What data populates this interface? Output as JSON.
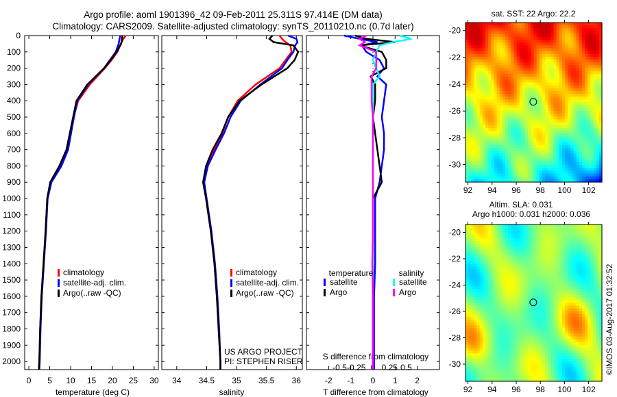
{
  "chart_data": [
    {
      "type": "line",
      "id": "temperature",
      "title": "Argo profile: aoml 1901396_42 09-Feb-2011 25.311S 97.414E (DM data)",
      "subtitle": "Climatology: CARS2009. Satellite-adjusted climatology: synTS_20110210.nc (0.7d later)",
      "xlabel": "temperature (deg C)",
      "xlim": [
        -1,
        31
      ],
      "xticks": [
        0,
        5,
        10,
        15,
        20,
        25,
        30
      ],
      "ylim": [
        2050,
        0
      ],
      "yticks": [
        0,
        100,
        200,
        300,
        400,
        500,
        600,
        700,
        800,
        900,
        1000,
        1100,
        1200,
        1300,
        1400,
        1500,
        1600,
        1700,
        1800,
        1900,
        2000
      ],
      "depth": [
        0,
        20,
        50,
        100,
        150,
        200,
        300,
        400,
        500,
        600,
        700,
        800,
        900,
        1000,
        1200,
        1400,
        1600,
        1800,
        2000,
        2050
      ],
      "series": [
        {
          "name": "climatology",
          "color": "#ff0000",
          "values": [
            23.2,
            22.6,
            22.0,
            21.2,
            19.8,
            18.2,
            14.6,
            11.8,
            10.7,
            9.9,
            9.1,
            7.4,
            5.2,
            4.4,
            4.0,
            3.5,
            3.0,
            2.7,
            2.5,
            2.4
          ]
        },
        {
          "name": "satellite-adj. clim.",
          "color": "#0000ff",
          "values": [
            21.9,
            21.7,
            21.5,
            20.8,
            19.4,
            18.0,
            14.2,
            11.6,
            10.8,
            10.1,
            9.4,
            7.8,
            5.4,
            4.5,
            4.1,
            3.6,
            3.1,
            2.8,
            2.6,
            2.5
          ]
        },
        {
          "name": "Argo(..raw -QC)",
          "color": "#000000",
          "values": [
            22.4,
            22.3,
            22.1,
            21.0,
            19.6,
            18.0,
            14.0,
            11.4,
            10.6,
            9.8,
            9.0,
            7.3,
            5.1,
            4.4,
            4.0,
            3.5,
            3.0,
            2.7,
            2.5,
            2.4
          ]
        }
      ]
    },
    {
      "type": "line",
      "id": "salinity",
      "xlabel": "salinity",
      "xlim": [
        33.75,
        36.1
      ],
      "xticks": [
        34,
        34.5,
        35,
        35.5,
        36
      ],
      "ylim": [
        2050,
        0
      ],
      "depth": [
        0,
        20,
        40,
        60,
        100,
        150,
        200,
        300,
        400,
        500,
        600,
        700,
        800,
        900,
        1000,
        1200,
        1400,
        1600,
        1800,
        2000,
        2050
      ],
      "series": [
        {
          "name": "climatology",
          "color": "#ff0000",
          "values": [
            35.72,
            35.76,
            35.82,
            35.9,
            35.92,
            35.82,
            35.72,
            35.32,
            35.02,
            34.86,
            34.76,
            34.62,
            34.5,
            34.45,
            34.49,
            34.57,
            34.63,
            34.67,
            34.7,
            34.73,
            34.73
          ]
        },
        {
          "name": "satellite-adj. clim.",
          "color": "#0000ff",
          "values": [
            35.86,
            36.0,
            36.02,
            35.98,
            35.95,
            35.85,
            35.76,
            35.4,
            35.07,
            34.9,
            34.79,
            34.65,
            34.52,
            34.46,
            34.5,
            34.58,
            34.64,
            34.68,
            34.71,
            34.73,
            34.73
          ]
        },
        {
          "name": "Argo(..raw -QC)",
          "color": "#000000",
          "values": [
            35.6,
            35.55,
            35.62,
            35.95,
            36.03,
            35.97,
            35.85,
            35.42,
            35.05,
            34.86,
            34.75,
            34.6,
            34.49,
            34.44,
            34.49,
            34.57,
            34.63,
            34.67,
            34.7,
            34.73,
            34.73
          ]
        }
      ],
      "annotations": [
        "US ARGO PROJECT",
        "PI: STEPHEN RISER"
      ]
    },
    {
      "type": "line",
      "id": "differences",
      "xlabel": "T difference from climatology",
      "xlabel2": "S difference from climatology",
      "xlim": [
        -3,
        3
      ],
      "xticks": [
        -2,
        -1,
        0,
        1,
        2
      ],
      "xticks2": [
        "-0.5",
        "-0.25",
        "0",
        "0.25",
        "0.5"
      ],
      "ylim": [
        2050,
        0
      ],
      "legend_groups": [
        "temperature",
        "salinity"
      ],
      "depth": [
        0,
        20,
        40,
        60,
        100,
        150,
        200,
        250,
        300,
        400,
        500,
        600,
        700,
        800,
        900,
        1000,
        1200,
        1400,
        1600,
        1800,
        2000,
        2050
      ],
      "series": [
        {
          "name": "satellite",
          "group": "temperature",
          "color": "#0000ff",
          "values": [
            -1.3,
            -0.6,
            0.2,
            -0.5,
            -0.3,
            0.3,
            0.5,
            0.2,
            0.6,
            0.5,
            0.4,
            0.5,
            0.5,
            0.4,
            0.3,
            0.1,
            0.1,
            0.1,
            0.05,
            0.05,
            0.05,
            0.05
          ]
        },
        {
          "name": "Argo",
          "group": "temperature",
          "color": "#000000",
          "values": [
            -0.8,
            -0.3,
            1.0,
            -0.6,
            0.4,
            0.6,
            0.6,
            -0.1,
            0.1,
            0.1,
            0.0,
            0.1,
            0.2,
            0.3,
            0.4,
            0.0,
            0.0,
            0.0,
            0.0,
            0.0,
            0.0,
            0.0
          ]
        },
        {
          "name": "satellite",
          "group": "salinity",
          "color": "#00ffff",
          "values": [
            0.4,
            0.58,
            0.3,
            0.1,
            0.05,
            0.0,
            0.05,
            0.1,
            0.0,
            0.0,
            0.0,
            0.0,
            0.0,
            0.0,
            0.0,
            0.0,
            0.0,
            0.0,
            0.0,
            0.0,
            0.0,
            0.0
          ]
        },
        {
          "name": "Argo",
          "group": "salinity",
          "color": "#ff00ff",
          "values": [
            -0.1,
            -0.2,
            -0.12,
            -0.2,
            0.05,
            0.05,
            0.05,
            -0.02,
            -0.02,
            -0.02,
            0.0,
            0.0,
            0.0,
            0.0,
            0.0,
            0.0,
            0.0,
            -0.01,
            0.0,
            0.0,
            0.0,
            0.0
          ]
        }
      ]
    },
    {
      "type": "heatmap",
      "id": "sst-map",
      "title": "sat. SST: 22 Argo: 22.2",
      "xticks": [
        92,
        94,
        96,
        98,
        100,
        102
      ],
      "yticks": [
        -20,
        -22,
        -24,
        -26,
        -28,
        -30
      ],
      "xlim": [
        91.8,
        103.1
      ],
      "ylim": [
        -31.3,
        -19.4
      ],
      "marker": [
        97.414,
        -25.311
      ]
    },
    {
      "type": "heatmap",
      "id": "sla-map",
      "title": "Altim. SLA: 0.031",
      "subtitle": "Argo h1000: 0.031 h2000: 0.036",
      "xticks": [
        92,
        94,
        96,
        98,
        100,
        102
      ],
      "yticks": [
        -20,
        -22,
        -24,
        -26,
        -28,
        -30
      ],
      "xlim": [
        91.8,
        103.1
      ],
      "ylim": [
        -31.3,
        -19.4
      ],
      "marker": [
        97.414,
        -25.311
      ]
    }
  ],
  "credit": "©IMOS 03-Aug-2017 01:32:52"
}
